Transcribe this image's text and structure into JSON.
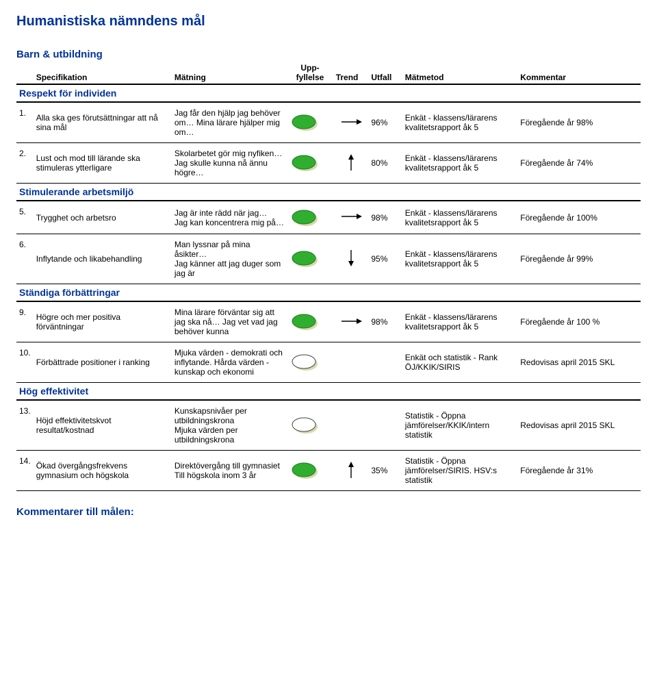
{
  "title": "Humanistiska nämndens mål",
  "headers": {
    "specifikation": "Specifikation",
    "matning": "Mätning",
    "uppfyllelse": "Upp-\nfyllelse",
    "trend": "Trend",
    "utfall": "Utfall",
    "matmetod": "Mätmetod",
    "kommentar": "Kommentar"
  },
  "groups": [
    {
      "label": "Barn & utbildning",
      "subgroups": [
        {
          "label": "Respekt för individen",
          "rows": [
            {
              "idx": "1.",
              "spec": "Alla ska ges förutsättningar att nå sina mål",
              "mat": "Jag får den hjälp jag behöver om… Mina lärare hjälper mig om…",
              "bubble": "green",
              "trend": "flat",
              "utfall": "96%",
              "metod": "Enkät - klassens/lärarens kvalitetsrapport åk 5",
              "kom": "Föregående år 98%"
            },
            {
              "idx": "2.",
              "spec": "Lust och mod till lärande ska stimuleras ytterligare",
              "mat": "Skolarbetet gör mig nyfiken…\nJag skulle kunna nå ännu högre…",
              "bubble": "green",
              "trend": "up",
              "utfall": "80%",
              "metod": "Enkät - klassens/lärarens kvalitetsrapport åk 5",
              "kom": "Föregående år 74%"
            }
          ]
        },
        {
          "label": "Stimulerande arbetsmiljö",
          "rows": [
            {
              "idx": "5.",
              "spec": "Trygghet och arbetsro",
              "mat": "Jag är inte rädd när jag…\nJag kan koncentrera mig på…",
              "bubble": "green",
              "trend": "flat",
              "utfall": "98%",
              "metod": "Enkät - klassens/lärarens kvalitetsrapport åk 5",
              "kom": "Föregående år 100%"
            },
            {
              "idx": "6.",
              "spec": "Inflytande och likabehandling",
              "mat": "Man lyssnar på mina åsikter…\nJag känner att jag duger som jag är",
              "bubble": "green",
              "trend": "down",
              "utfall": "95%",
              "metod": "Enkät - klassens/lärarens kvalitetsrapport åk 5",
              "kom": "Föregående år 99%"
            }
          ]
        },
        {
          "label": "Ständiga förbättringar",
          "rows": [
            {
              "idx": "9.",
              "spec": "Högre och mer positiva förväntningar",
              "mat": "Mina lärare förväntar sig att jag ska nå… Jag vet vad jag behöver kunna",
              "bubble": "green",
              "trend": "flat",
              "utfall": "98%",
              "metod": "Enkät - klassens/lärarens kvalitetsrapport åk 5",
              "kom": "Föregående år 100 %"
            },
            {
              "idx": "10.",
              "spec": "Förbättrade positioner i ranking",
              "mat": "Mjuka värden - demokrati och inflytande. Hårda värden - kunskap och ekonomi",
              "bubble": "white",
              "trend": "",
              "utfall": "",
              "metod": "Enkät och statistik - Rank ÖJ/KKIK/SIRIS",
              "kom": "Redovisas april 2015 SKL"
            }
          ]
        },
        {
          "label": "Hög effektivitet",
          "rows": [
            {
              "idx": "13.",
              "spec": "Höjd effektivitetskvot resultat/kostnad",
              "mat": "Kunskapsnivåer per utbildningskrona\nMjuka värden per utbildningskrona",
              "bubble": "white",
              "trend": "",
              "utfall": "",
              "metod": "Statistik - Öppna jämförelser/KKIK/intern statistik",
              "kom": "Redovisas april 2015 SKL"
            },
            {
              "idx": "14.",
              "spec": "Ökad övergångsfrekvens gymnasium och högskola",
              "mat": "Direktövergång till gymnasiet\nTill högskola inom 3 år",
              "bubble": "green",
              "trend": "up",
              "utfall": "35%",
              "metod": "Statistik - Öppna jämförelser/SIRIS. HSV:s statistik",
              "kom": "Föregående år 31%"
            }
          ]
        }
      ]
    }
  ],
  "footer": "Kommentarer till målen:",
  "bubbleColors": {
    "green_fill": "#2fae2f",
    "green_stroke": "#1f7a1f",
    "white_fill": "#ffffff",
    "white_stroke": "#444444",
    "shadow": "#d8d8b0",
    "trend_stroke": "#000000"
  }
}
